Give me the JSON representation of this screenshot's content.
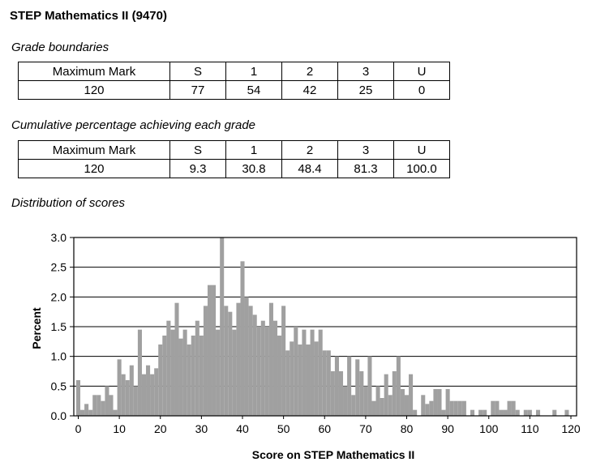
{
  "title": "STEP Mathematics II (9470)",
  "sections": {
    "grade_boundaries": "Grade boundaries",
    "cumulative": "Cumulative percentage achieving each grade",
    "distribution": "Distribution of scores"
  },
  "table1": {
    "header": [
      "Maximum Mark",
      "S",
      "1",
      "2",
      "3",
      "U"
    ],
    "row": [
      "120",
      "77",
      "54",
      "42",
      "25",
      "0"
    ]
  },
  "table2": {
    "header": [
      "Maximum Mark",
      "S",
      "1",
      "2",
      "3",
      "U"
    ],
    "row": [
      "120",
      "9.3",
      "30.8",
      "48.4",
      "81.3",
      "100.0"
    ]
  },
  "chart_data": {
    "type": "bar",
    "xlabel": "Score on STEP Mathematics II",
    "ylabel": "Percent",
    "xlim": [
      0,
      120
    ],
    "ylim": [
      0,
      3
    ],
    "grid": true,
    "xticks": [
      "0",
      "10",
      "20",
      "30",
      "40",
      "50",
      "60",
      "70",
      "80",
      "90",
      "100",
      "110",
      "120"
    ],
    "yticks": [
      "0.0",
      "0.5",
      "1.0",
      "1.5",
      "2.0",
      "2.5",
      "3.0"
    ],
    "colors": {
      "bars": "#a0a0a0"
    },
    "x": [
      0,
      1,
      2,
      3,
      4,
      5,
      6,
      7,
      8,
      9,
      10,
      11,
      12,
      13,
      14,
      15,
      16,
      17,
      18,
      19,
      20,
      21,
      22,
      23,
      24,
      25,
      26,
      27,
      28,
      29,
      30,
      31,
      32,
      33,
      34,
      35,
      36,
      37,
      38,
      39,
      40,
      41,
      42,
      43,
      44,
      45,
      46,
      47,
      48,
      49,
      50,
      51,
      52,
      53,
      54,
      55,
      56,
      57,
      58,
      59,
      60,
      61,
      62,
      63,
      64,
      65,
      66,
      67,
      68,
      69,
      70,
      71,
      72,
      73,
      74,
      75,
      76,
      77,
      78,
      79,
      80,
      81,
      82,
      83,
      84,
      85,
      86,
      87,
      88,
      89,
      90,
      91,
      92,
      93,
      94,
      95,
      96,
      97,
      98,
      99,
      100,
      101,
      102,
      103,
      104,
      105,
      106,
      107,
      108,
      109,
      110,
      111,
      112,
      113,
      114,
      115,
      116,
      117,
      118,
      119,
      120
    ],
    "values": [
      0.6,
      0.1,
      0.2,
      0.1,
      0.35,
      0.35,
      0.25,
      0.5,
      0.35,
      0.1,
      0.95,
      0.7,
      0.6,
      0.85,
      0.5,
      1.45,
      0.7,
      0.85,
      0.7,
      0.8,
      1.2,
      1.35,
      1.6,
      1.45,
      1.9,
      1.3,
      1.45,
      1.2,
      1.35,
      1.6,
      1.35,
      1.85,
      2.2,
      2.2,
      1.45,
      3.0,
      1.85,
      1.75,
      1.45,
      1.9,
      2.6,
      2.0,
      1.85,
      1.7,
      1.5,
      1.6,
      1.5,
      1.9,
      1.6,
      1.35,
      1.85,
      1.1,
      1.25,
      1.5,
      1.2,
      1.45,
      1.2,
      1.45,
      1.25,
      1.45,
      1.1,
      1.1,
      0.75,
      1.0,
      0.75,
      0.5,
      1.0,
      0.35,
      0.95,
      0.75,
      0.5,
      1.0,
      0.25,
      0.5,
      0.3,
      0.7,
      0.35,
      0.75,
      1.0,
      0.45,
      0.35,
      0.7,
      0.1,
      0.0,
      0.35,
      0.2,
      0.25,
      0.45,
      0.45,
      0.1,
      0.45,
      0.25,
      0.25,
      0.25,
      0.25,
      0.0,
      0.1,
      0.0,
      0.1,
      0.1,
      0.0,
      0.25,
      0.25,
      0.1,
      0.1,
      0.25,
      0.25,
      0.1,
      0.0,
      0.1,
      0.1,
      0.0,
      0.1,
      0.0,
      0.0,
      0.0,
      0.1,
      0.0,
      0.0,
      0.1,
      0.0
    ]
  }
}
